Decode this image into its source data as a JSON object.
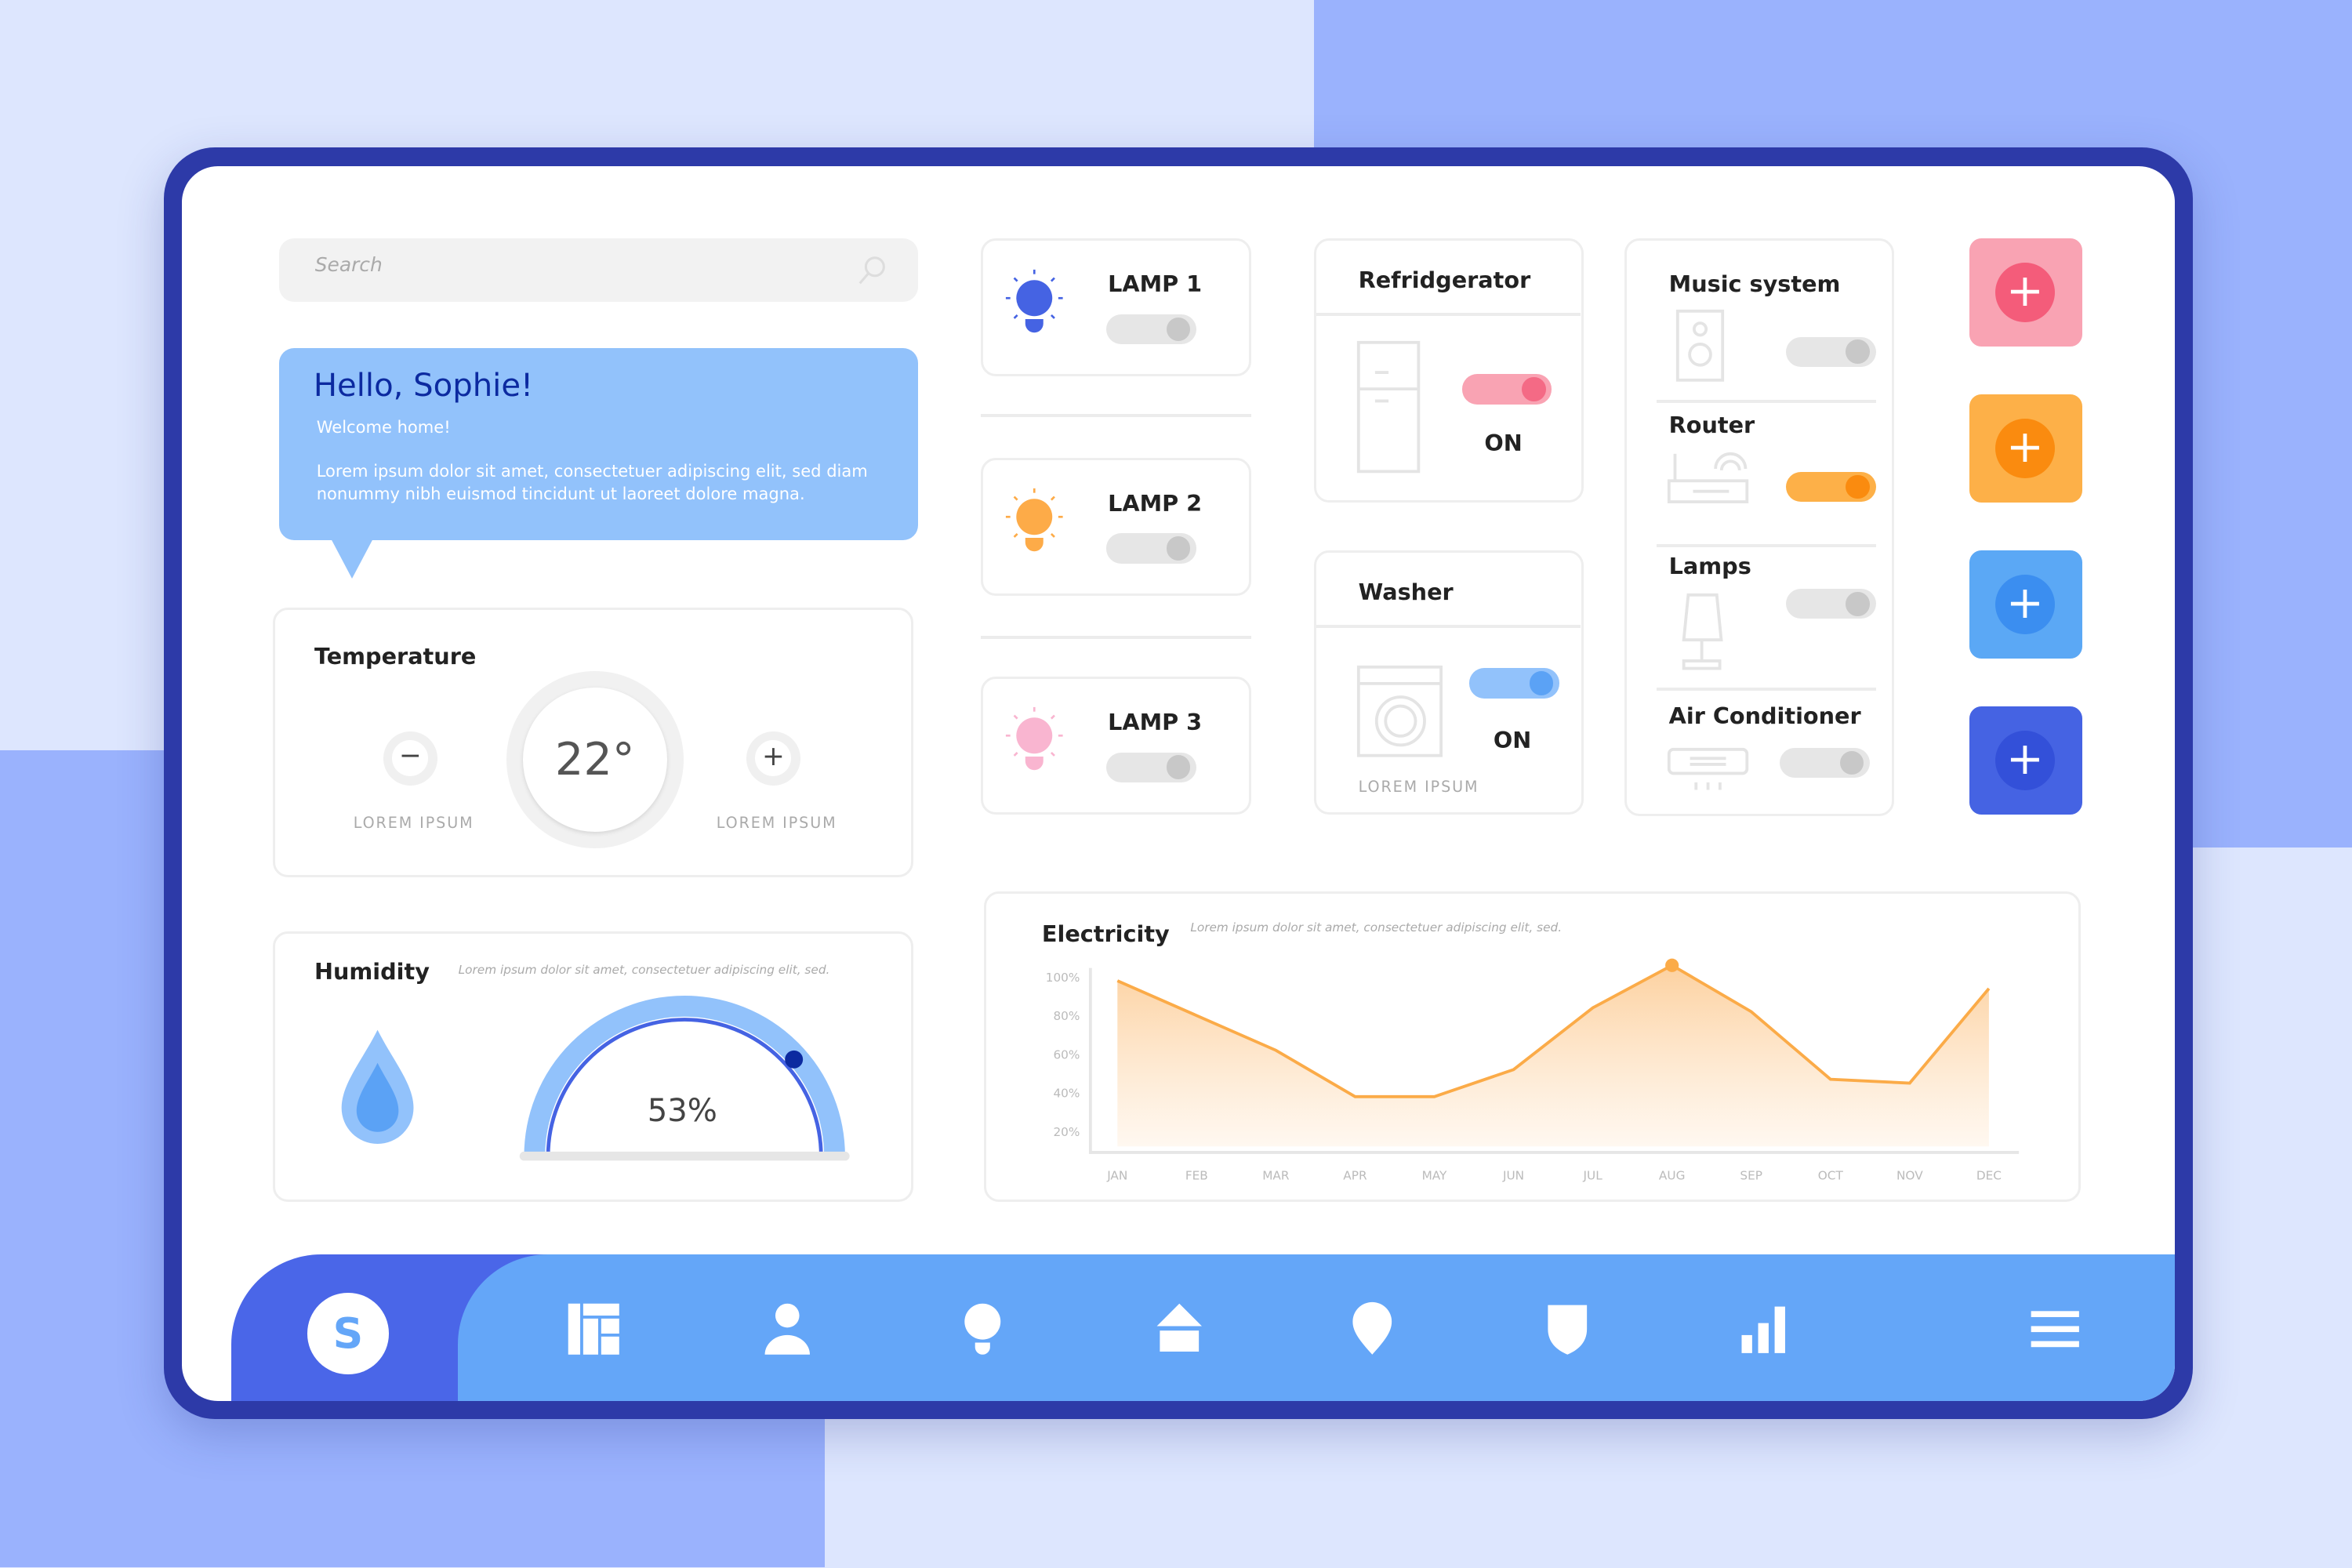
{
  "search": {
    "placeholder": "Search",
    "icon": "search-icon"
  },
  "greeting": {
    "title": "Hello, Sophie!",
    "subtitle": "Welcome home!",
    "body": "Lorem ipsum dolor sit amet, consectetuer adipiscing elit, sed diam nonummy nibh euismod tincidunt ut laoreet dolore magna."
  },
  "temperature": {
    "title": "Temperature",
    "value": "22°",
    "minus_label": "LOREM IPSUM",
    "plus_label": "LOREM IPSUM"
  },
  "humidity": {
    "title": "Humidity",
    "description": "Lorem ipsum dolor sit amet, consectetuer adipiscing elit, sed.",
    "value": "53%",
    "percent": 53
  },
  "lamps": [
    {
      "label": "LAMP 1",
      "color": "#4563e3",
      "on": false
    },
    {
      "label": "LAMP 2",
      "color": "#fdab48",
      "on": false
    },
    {
      "label": "LAMP 3",
      "color": "#f9b5d0",
      "on": false
    }
  ],
  "refrigerator": {
    "title": "Refridgerator",
    "status": "ON",
    "toggle_color": "#f9a3b3",
    "knob_color": "#f46a85"
  },
  "washer": {
    "title": "Washer",
    "status": "ON",
    "footer": "LOREM IPSUM",
    "toggle_color": "#92c2fb",
    "knob_color": "#5ba2f5"
  },
  "devices": [
    {
      "label": "Music system",
      "icon": "speaker-icon",
      "on": false
    },
    {
      "label": "Router",
      "icon": "router-icon",
      "on": true,
      "color": "#fdb048",
      "knob": "#fa8b0f"
    },
    {
      "label": "Lamps",
      "icon": "lamp-icon",
      "on": false
    },
    {
      "label": "Air Conditioner",
      "icon": "air-conditioner-icon",
      "on": false
    }
  ],
  "add_buttons": [
    {
      "bg": "#f9a3b3",
      "circle": "#f45c7a"
    },
    {
      "bg": "#fdb048",
      "circle": "#fa8b0f"
    },
    {
      "bg": "#5ba8f5",
      "circle": "#3b8ef0"
    },
    {
      "bg": "#4563e3",
      "circle": "#3350d9"
    }
  ],
  "electricity": {
    "title": "Electricity",
    "description": "Lorem ipsum dolor sit amet, consectetuer adipiscing elit, sed."
  },
  "chart_data": {
    "type": "area",
    "categories": [
      "JAN",
      "FEB",
      "MAR",
      "APR",
      "MAY",
      "JUN",
      "JUL",
      "AUG",
      "SEP",
      "OCT",
      "NOV",
      "DEC"
    ],
    "values": [
      98,
      80,
      62,
      38,
      38,
      52,
      84,
      106,
      82,
      47,
      45,
      94
    ],
    "y_ticks": [
      "100%",
      "80%",
      "60%",
      "40%",
      "20%"
    ],
    "y_tick_values": [
      100,
      80,
      60,
      40,
      20
    ],
    "highlight": "AUG",
    "color": "#fbab48",
    "grid": false
  },
  "nav": {
    "avatar_letter": "S",
    "items": [
      "dashboard-icon",
      "user-icon",
      "bulb-icon",
      "home-icon",
      "location-icon",
      "shield-icon",
      "stats-icon",
      "menu-icon"
    ]
  }
}
